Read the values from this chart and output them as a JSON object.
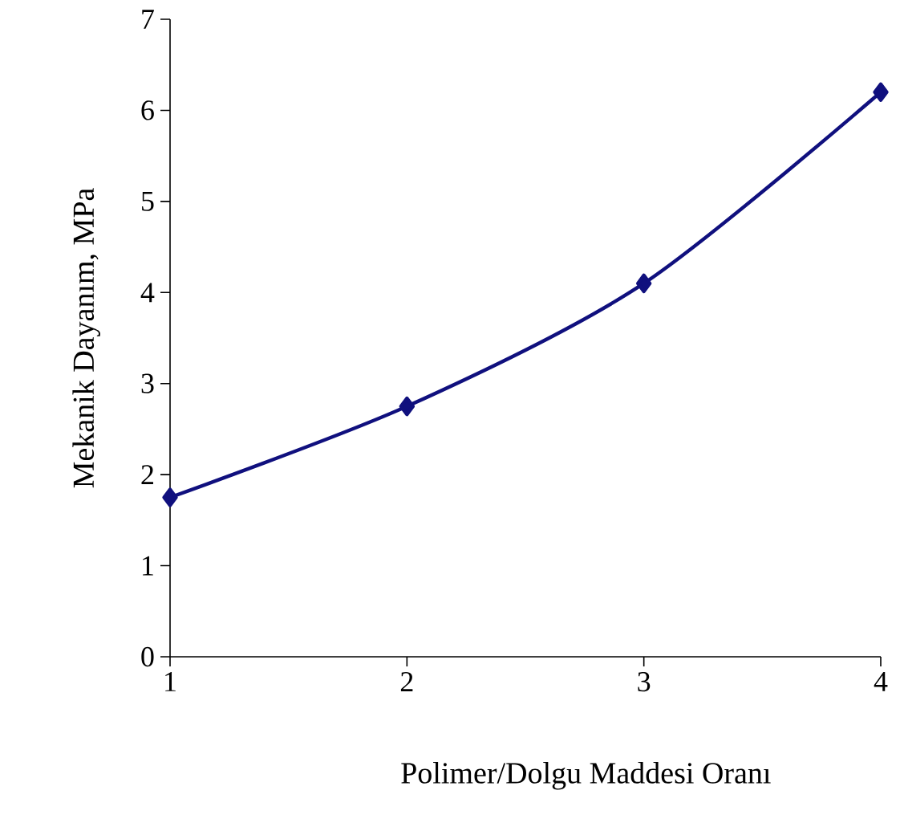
{
  "chart_data": {
    "type": "line",
    "xlabel": "Polimer/Dolgu Maddesi Oranı",
    "ylabel": "Mekanik Dayanım, MPa",
    "x": [
      1,
      2,
      3,
      4
    ],
    "series": [
      {
        "color": "#10107e",
        "values": [
          1.75,
          2.75,
          4.1,
          6.2
        ]
      }
    ],
    "xlim": [
      1,
      4
    ],
    "xticks": [
      1,
      2,
      3,
      4
    ],
    "ylim": [
      0,
      7
    ],
    "yticks": [
      0,
      1,
      2,
      3,
      4,
      5,
      6,
      7
    ],
    "marker": "diamond",
    "grid": false
  }
}
